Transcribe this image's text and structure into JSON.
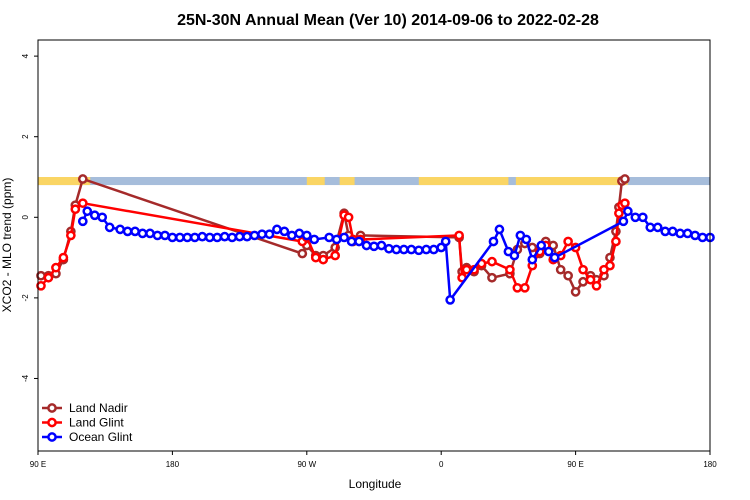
{
  "chart_data": {
    "type": "line",
    "title": "25N-30N Annual Mean (Ver 10)   2014-09-06 to 2022-02-28",
    "xlabel": "Longitude",
    "ylabel": "XCO2 - MLO trend (ppm)",
    "xlim": [
      90,
      540
    ],
    "ylim": [
      -5.8,
      4.4
    ],
    "x_ticks": [
      {
        "value": 90,
        "label": "90 E"
      },
      {
        "value": 180,
        "label": "180"
      },
      {
        "value": 270,
        "label": "90 W"
      },
      {
        "value": 360,
        "label": "0"
      },
      {
        "value": 450,
        "label": "90 E"
      },
      {
        "value": 540,
        "label": "180"
      }
    ],
    "y_ticks": [
      {
        "value": -4,
        "label": "-4"
      },
      {
        "value": -2,
        "label": "-2"
      },
      {
        "value": 0,
        "label": "0"
      },
      {
        "value": 2,
        "label": "2"
      },
      {
        "value": 4,
        "label": "4"
      }
    ],
    "grid": false,
    "legend": "bottom-left",
    "series": [
      {
        "name": "Land Nadir",
        "color": "#a52a2a",
        "x": [
          92,
          97,
          102,
          107,
          112,
          115,
          120,
          267,
          270,
          276,
          281,
          289,
          295,
          298,
          301,
          306,
          372,
          374,
          377,
          382,
          387,
          394,
          406,
          411,
          416,
          421,
          426,
          430,
          435,
          440,
          445,
          450,
          455,
          460,
          464,
          469,
          473,
          477,
          479,
          481,
          483
        ],
        "y": [
          -1.45,
          -1.45,
          -1.4,
          -1.05,
          -0.35,
          0.3,
          0.95,
          -0.9,
          -0.7,
          -0.95,
          -0.95,
          -0.75,
          0.1,
          -0.45,
          -0.6,
          -0.45,
          -0.5,
          -1.35,
          -1.25,
          -1.35,
          -1.2,
          -1.5,
          -1.4,
          -0.8,
          -0.65,
          -0.75,
          -0.9,
          -0.6,
          -0.7,
          -1.3,
          -1.45,
          -1.85,
          -1.6,
          -1.45,
          -1.55,
          -1.45,
          -1.0,
          -0.35,
          0.25,
          0.9,
          0.95
        ]
      },
      {
        "name": "Land Glint",
        "color": "#ff0000",
        "x": [
          92,
          97,
          102,
          107,
          112,
          115,
          120,
          267,
          270,
          276,
          281,
          289,
          295,
          298,
          301,
          306,
          372,
          374,
          377,
          382,
          387,
          394,
          406,
          411,
          416,
          421,
          426,
          430,
          435,
          440,
          445,
          450,
          455,
          460,
          464,
          469,
          473,
          477,
          479,
          481,
          483
        ],
        "y": [
          -1.7,
          -1.5,
          -1.25,
          -1.0,
          -0.45,
          0.2,
          0.35,
          -0.6,
          -0.5,
          -1.0,
          -1.05,
          -0.95,
          0.05,
          0.0,
          -0.55,
          -0.55,
          -0.45,
          -1.5,
          -1.3,
          -1.3,
          -1.15,
          -1.1,
          -1.3,
          -1.75,
          -1.75,
          -1.2,
          -0.85,
          -0.7,
          -1.05,
          -0.95,
          -0.6,
          -0.75,
          -1.3,
          -1.55,
          -1.7,
          -1.3,
          -1.2,
          -0.6,
          0.1,
          0.3,
          0.35
        ]
      },
      {
        "name": "Ocean Glint",
        "color": "#0000ff",
        "x": [
          120,
          123,
          128,
          133,
          138,
          145,
          150,
          155,
          160,
          165,
          170,
          175,
          180,
          185,
          190,
          195,
          200,
          205,
          210,
          215,
          220,
          225,
          230,
          235,
          240,
          245,
          250,
          255,
          260,
          265,
          270,
          275,
          285,
          290,
          295,
          300,
          305,
          310,
          315,
          320,
          325,
          330,
          335,
          340,
          345,
          350,
          355,
          360,
          363,
          366,
          395,
          399,
          405,
          409,
          413,
          417,
          421,
          427,
          432,
          436,
          482,
          485,
          490,
          495,
          500,
          505,
          510,
          515,
          520,
          525,
          530,
          535,
          540
        ],
        "y": [
          -0.1,
          0.15,
          0.05,
          0.0,
          -0.25,
          -0.3,
          -0.35,
          -0.35,
          -0.4,
          -0.4,
          -0.45,
          -0.45,
          -0.5,
          -0.5,
          -0.5,
          -0.5,
          -0.48,
          -0.5,
          -0.5,
          -0.48,
          -0.5,
          -0.48,
          -0.48,
          -0.45,
          -0.42,
          -0.42,
          -0.3,
          -0.35,
          -0.45,
          -0.4,
          -0.45,
          -0.55,
          -0.5,
          -0.55,
          -0.5,
          -0.6,
          -0.6,
          -0.7,
          -0.72,
          -0.7,
          -0.78,
          -0.8,
          -0.8,
          -0.8,
          -0.82,
          -0.8,
          -0.8,
          -0.75,
          -0.6,
          -2.05,
          -0.6,
          -0.3,
          -0.85,
          -0.95,
          -0.45,
          -0.55,
          -1.05,
          -0.7,
          -0.85,
          -1.0,
          -0.1,
          0.15,
          0.0,
          0.0,
          -0.25,
          -0.25,
          -0.35,
          -0.35,
          -0.4,
          -0.4,
          -0.45,
          -0.5,
          -0.5
        ]
      }
    ],
    "land_sea_band": {
      "y_top": 1.0,
      "y_bottom": 0.8,
      "ocean_color": "#a6bddb",
      "land_color": "#fad564",
      "land_ranges": [
        [
          90,
          125
        ],
        [
          270,
          282
        ],
        [
          292,
          302
        ],
        [
          345,
          405
        ],
        [
          410,
          485
        ]
      ]
    }
  }
}
